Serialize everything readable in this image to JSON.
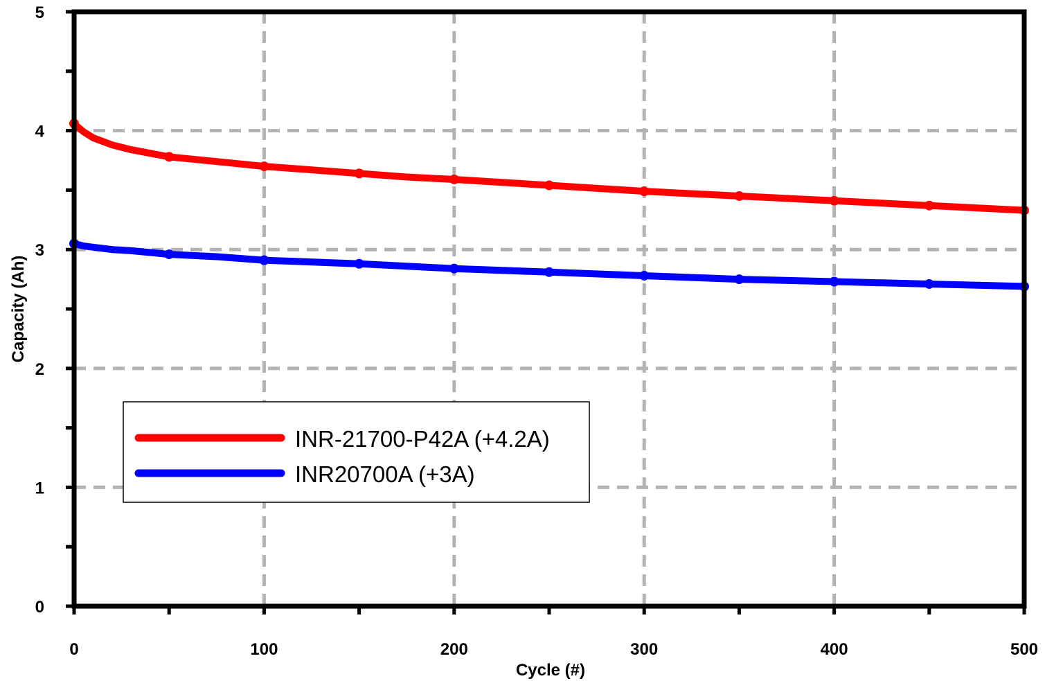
{
  "chart_data": {
    "type": "line",
    "xlabel": "Cycle (#)",
    "ylabel": "Capacity (Ah)",
    "xlim": [
      0,
      500
    ],
    "ylim": [
      0,
      5
    ],
    "x_ticks": [
      "0",
      "100",
      "200",
      "300",
      "400",
      "500"
    ],
    "y_ticks": [
      "0",
      "1",
      "2",
      "3",
      "4",
      "5"
    ],
    "grid": true,
    "legend_position": "lower-left",
    "series": [
      {
        "name": "INR-21700-P42A (+4.2A)",
        "color": "#ff0000",
        "x": [
          0,
          2,
          5,
          10,
          20,
          30,
          50,
          75,
          100,
          125,
          150,
          175,
          200,
          250,
          300,
          350,
          400,
          450,
          500
        ],
        "y": [
          4.06,
          4.03,
          3.99,
          3.94,
          3.88,
          3.84,
          3.78,
          3.74,
          3.7,
          3.67,
          3.64,
          3.61,
          3.59,
          3.54,
          3.49,
          3.45,
          3.41,
          3.37,
          3.33
        ]
      },
      {
        "name": "INR20700A (+3A)",
        "color": "#0000ff",
        "x": [
          0,
          5,
          10,
          20,
          30,
          50,
          75,
          100,
          150,
          200,
          250,
          300,
          350,
          400,
          450,
          500
        ],
        "y": [
          3.05,
          3.03,
          3.02,
          3.0,
          2.99,
          2.96,
          2.94,
          2.91,
          2.88,
          2.84,
          2.81,
          2.78,
          2.75,
          2.73,
          2.71,
          2.69
        ]
      }
    ]
  }
}
